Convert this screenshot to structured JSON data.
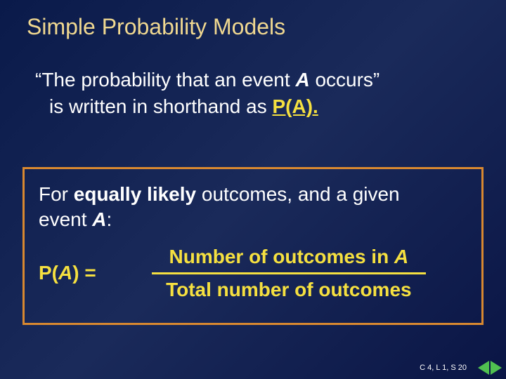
{
  "title": "Simple Probability Models",
  "intro": {
    "line1_prefix": "“The probability that an event ",
    "a": "A",
    "line1_suffix": " occurs”",
    "line2_prefix": "is written in shorthand as ",
    "pa": "P(A)",
    "period": "."
  },
  "box": {
    "prefix1": "For ",
    "equally_likely": "equally likely",
    "prefix2": " outcomes, and a given",
    "line2a": "event ",
    "a": "A",
    "colon": ":",
    "lhs_p": "P(",
    "lhs_a": "A",
    "lhs_close": ") = ",
    "numer_pre": "Number of outcomes in ",
    "numer_a": "A",
    "denom": "Total number of outcomes"
  },
  "footer": "C 4, L 1, S 20",
  "colors": {
    "background_start": "#0a1a4a",
    "background_mid": "#1a2a5a",
    "background_end": "#0a1545",
    "title": "#f0d890",
    "body_text": "#ffffff",
    "highlight": "#f5e040",
    "box_border": "#d88830",
    "nav_green": "#50c050"
  },
  "fonts": {
    "title_size": 32,
    "body_size": 28,
    "footer_size": 11
  }
}
